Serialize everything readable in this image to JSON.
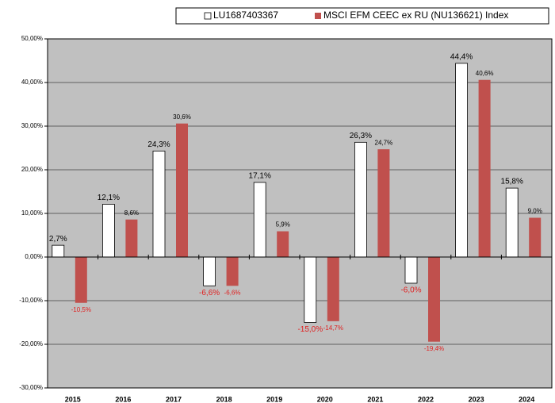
{
  "chart_data": {
    "type": "bar",
    "categories": [
      "2015",
      "2016",
      "2017",
      "2018",
      "2019",
      "2020",
      "2021",
      "2022",
      "2023",
      "2024"
    ],
    "series": [
      {
        "name": "LU1687403367",
        "color": "#ffffff",
        "values": [
          2.7,
          12.1,
          24.3,
          -6.6,
          17.1,
          -15.0,
          26.3,
          -6.0,
          44.4,
          15.8
        ],
        "value_labels": [
          "2,7%",
          "12,1%",
          "24,3%",
          "-6,6%",
          "17,1%",
          "-15,0%",
          "26,3%",
          "-6,0%",
          "44,4%",
          "15,8%"
        ]
      },
      {
        "name": "MSCI EFM CEEC ex RU (NU136621) Index",
        "color": "#c0504d",
        "values": [
          -10.5,
          8.6,
          30.6,
          -6.6,
          5.9,
          -14.7,
          24.7,
          -19.4,
          40.6,
          9.0
        ],
        "value_labels": [
          "-10,5%",
          "8,6%",
          "30,6%",
          "-6,6%",
          "5,9%",
          "-14,7%",
          "24,7%",
          "-19,4%",
          "40,6%",
          "9,0%"
        ]
      }
    ],
    "ylim": [
      -30,
      50
    ],
    "yticks": [
      {
        "value": -30,
        "label": "-30,00%"
      },
      {
        "value": -20,
        "label": "-20,00%"
      },
      {
        "value": -10,
        "label": "-10,00%"
      },
      {
        "value": 0,
        "label": "0,00%"
      },
      {
        "value": 10,
        "label": "10,00%"
      },
      {
        "value": 20,
        "label": "20,00%"
      },
      {
        "value": 30,
        "label": "30,00%"
      },
      {
        "value": 40,
        "label": "40,00%"
      },
      {
        "value": 50,
        "label": "50,00%"
      }
    ],
    "grid": true,
    "background": "#c0c0c0",
    "legend": "top-right"
  }
}
